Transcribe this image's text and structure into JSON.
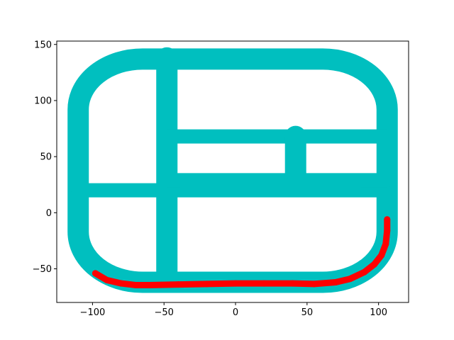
{
  "chart_data": {
    "type": "scatter",
    "title": "",
    "xlabel": "",
    "ylabel": "",
    "xlim": [
      -125,
      121
    ],
    "ylim": [
      -80,
      153
    ],
    "xticks": [
      -100,
      -50,
      0,
      50,
      100
    ],
    "yticks": [
      -50,
      0,
      50,
      100,
      150
    ],
    "grid": false,
    "legend": "none",
    "series": [
      {
        "role": "road-network",
        "color": "#00bfbf",
        "marker": "circle",
        "segments": [
          {
            "kind": "rounded-loop",
            "xmin": -110,
            "xmax": 106,
            "ymin": -62,
            "ymax": 137,
            "corner_radius": 45
          },
          {
            "kind": "vertical",
            "x": -48,
            "y0": -60,
            "y1": 138
          },
          {
            "kind": "horizontal",
            "y": 20,
            "x0": -110,
            "x1": 106
          },
          {
            "kind": "horizontal",
            "y": 68,
            "x0": -48,
            "x1": 106
          },
          {
            "kind": "horizontal",
            "y": 29,
            "x0": -48,
            "x1": 106
          },
          {
            "kind": "vertical",
            "x": 42,
            "y0": 29,
            "y1": 68
          }
        ]
      },
      {
        "role": "path",
        "color": "#ff0000",
        "marker": "circle",
        "x": [
          -98,
          -90,
          -80,
          -70,
          -60,
          -40,
          -20,
          0,
          20,
          40,
          55,
          70,
          80,
          90,
          97,
          102,
          105,
          106,
          106
        ],
        "y": [
          -54,
          -60,
          -63,
          -64.5,
          -64.5,
          -64,
          -63.5,
          -63,
          -63,
          -63,
          -63.5,
          -62,
          -59,
          -53,
          -46,
          -38,
          -28,
          -16,
          -6
        ]
      }
    ]
  }
}
